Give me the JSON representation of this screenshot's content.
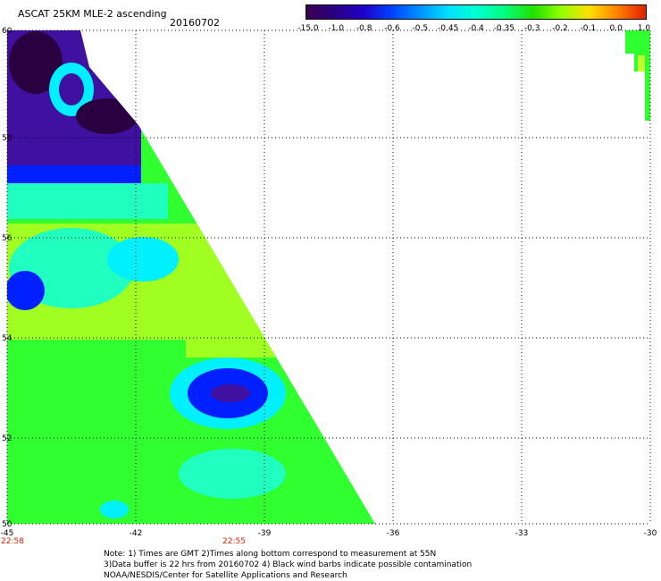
{
  "header": {
    "title": "ASCAT 25KM MLE-2 ascending",
    "date": "20160702"
  },
  "colorbar": {
    "tick_labels": [
      "-15.0",
      "-1.0",
      "-0.8",
      "-0.6",
      "-0.5",
      "-0.45",
      "-0.4",
      "-0.35",
      "-0.3",
      "-0.2",
      "-0.1",
      "0.0",
      "1.0"
    ],
    "colors": [
      "#3a0050",
      "#2a0080",
      "#2000c8",
      "#0040ff",
      "#0090ff",
      "#00e0ff",
      "#00ffd0",
      "#00ff80",
      "#20e000",
      "#90ff00",
      "#ffe000",
      "#ff8000",
      "#e02000"
    ]
  },
  "map": {
    "lon_labels": [
      "-45",
      "-42",
      "-39",
      "-36",
      "-33",
      "-30"
    ],
    "lat_labels": [
      "60",
      "58",
      "56",
      "54",
      "52",
      "50"
    ],
    "time_labels": [
      "22:58",
      "22:55"
    ],
    "swath_colors": {
      "deep": "#2a0040",
      "purple": "#4010a0",
      "blue": "#0020ff",
      "cyan": "#00f0ff",
      "aqua": "#20ffc0",
      "green": "#30ff30",
      "lime": "#a0ff20",
      "yellowgreen": "#c0ff30"
    }
  },
  "footer": {
    "line1": "Note: 1) Times are GMT 2)Times along bottom correspond to measurement at 55N",
    "line2": "3)Data buffer is 22 hrs from 20160702 4) Black wind barbs indicate possible contamination",
    "line3": "NOAA/NESDIS/Center for Satellite Applications and Research"
  }
}
